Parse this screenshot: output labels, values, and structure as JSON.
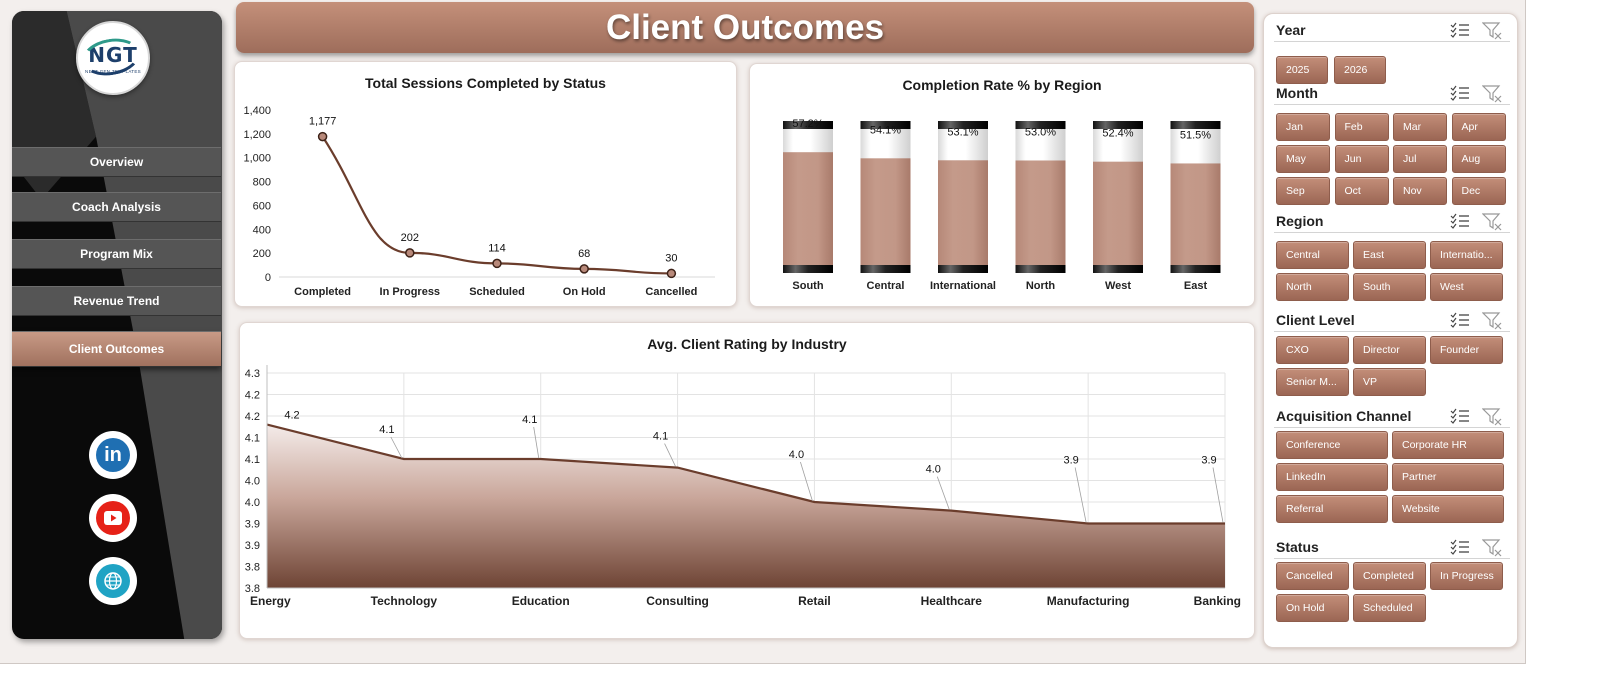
{
  "title": "Client Outcomes",
  "logo": {
    "mark": "NGT",
    "sub": "NEXT GEN TEMPLATES"
  },
  "nav": [
    {
      "label": "Overview",
      "active": false
    },
    {
      "label": "Coach Analysis",
      "active": false
    },
    {
      "label": "Program Mix",
      "active": false
    },
    {
      "label": "Revenue Trend",
      "active": false
    },
    {
      "label": "Client Outcomes",
      "active": true
    }
  ],
  "social": [
    "linkedin-icon",
    "youtube-icon",
    "globe-icon"
  ],
  "colors": {
    "accent": "#a8735f",
    "area_dark": "#6e4435",
    "line": "#6b3d2c",
    "sidebar": "#0a0a0a"
  },
  "chart_data": [
    {
      "type": "line",
      "title": "Total Sessions Completed by Status",
      "categories": [
        "Completed",
        "In Progress",
        "Scheduled",
        "On Hold",
        "Cancelled"
      ],
      "values": [
        1177,
        202,
        114,
        68,
        30
      ],
      "data_labels": [
        "1,177",
        "202",
        "114",
        "68",
        "30"
      ],
      "yticks": [
        "1,400",
        "1,200",
        "1,000",
        "800",
        "600",
        "400",
        "200",
        "0"
      ],
      "ylim": [
        0,
        1400
      ],
      "grid": false
    },
    {
      "type": "bar",
      "title": "Completion Rate % by Region",
      "categories": [
        "South",
        "Central",
        "International",
        "North",
        "West",
        "East"
      ],
      "values": [
        57.2,
        54.1,
        53.1,
        53.0,
        52.4,
        51.5
      ],
      "data_labels": [
        "57.2%",
        "54.1%",
        "53.1%",
        "53.0%",
        "52.4%",
        "51.5%"
      ],
      "ylim": [
        0,
        100
      ]
    },
    {
      "type": "area",
      "title": "Avg. Client Rating by Industry",
      "categories": [
        "Energy",
        "Technology",
        "Education",
        "Consulting",
        "Retail",
        "Healthcare",
        "Manufacturing",
        "Banking"
      ],
      "values": [
        4.18,
        4.1,
        4.1,
        4.08,
        4.0,
        3.98,
        3.95,
        3.95
      ],
      "data_labels": [
        "4.2",
        "4.1",
        "4.1",
        "4.1",
        "4.0",
        "4.0",
        "3.9",
        "3.9"
      ],
      "yticks": [
        "4.3",
        "4.2",
        "4.2",
        "4.1",
        "4.1",
        "4.0",
        "4.0",
        "3.9",
        "3.9",
        "3.8",
        "3.8"
      ],
      "ylim": [
        3.8,
        4.3
      ],
      "grid": true
    }
  ],
  "slicers": [
    {
      "label": "Year",
      "items": [
        "2025",
        "2026"
      ]
    },
    {
      "label": "Month",
      "items": [
        "Jan",
        "Feb",
        "Mar",
        "Apr",
        "May",
        "Jun",
        "Jul",
        "Aug",
        "Sep",
        "Oct",
        "Nov",
        "Dec"
      ]
    },
    {
      "label": "Region",
      "items": [
        "Central",
        "East",
        "Internatio...",
        "North",
        "South",
        "West"
      ]
    },
    {
      "label": "Client Level",
      "items": [
        "CXO",
        "Director",
        "Founder",
        "Senior M...",
        "VP"
      ]
    },
    {
      "label": "Acquisition Channel",
      "items": [
        "Conference",
        "Corporate HR",
        "LinkedIn",
        "Partner",
        "Referral",
        "Website"
      ]
    },
    {
      "label": "Status",
      "items": [
        "Cancelled",
        "Completed",
        "In Progress",
        "On Hold",
        "Scheduled"
      ]
    }
  ]
}
